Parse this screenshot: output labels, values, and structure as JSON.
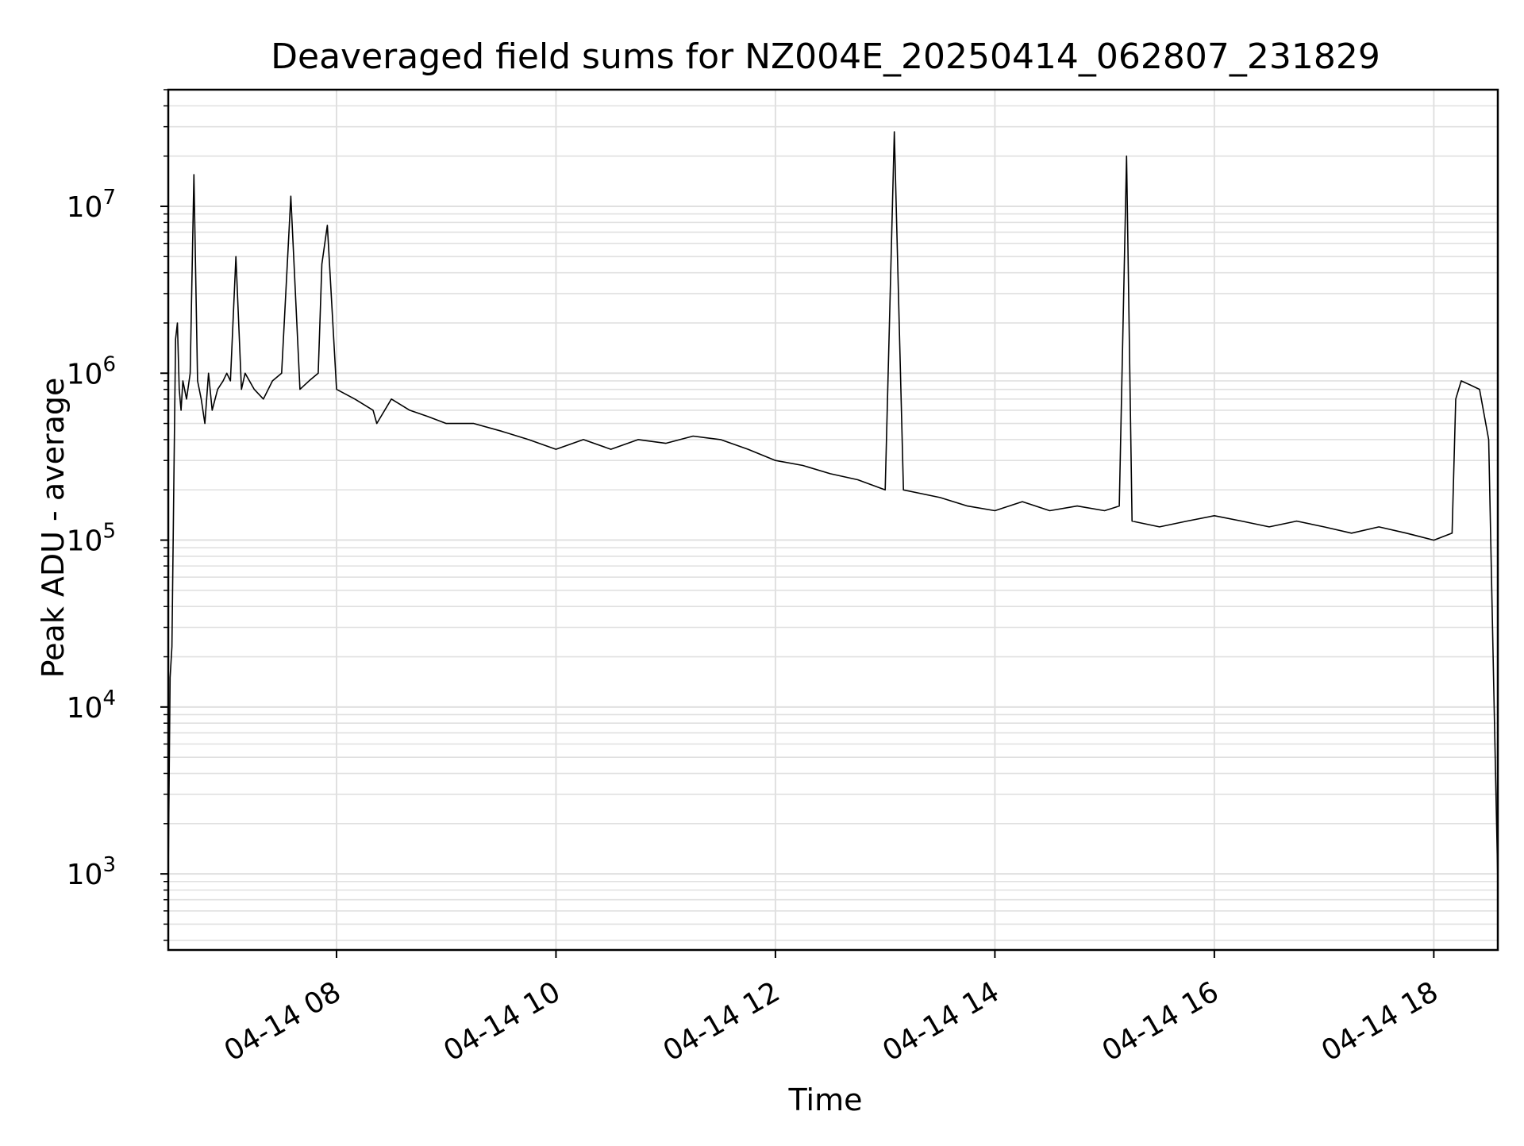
{
  "chart_data": {
    "type": "line",
    "title": "Deaveraged field sums for NZ004E_20250414_062807_231829",
    "xlabel": "Time",
    "ylabel": "Peak ADU - average",
    "y_scale": "log",
    "xlim": [
      "04-14 06:28",
      "04-14 18:35"
    ],
    "ylim": [
      350,
      50000000
    ],
    "grid": "major and minor",
    "line_color": "#000000",
    "grid_color": "#e0e0e0",
    "x_ticks": [
      {
        "value": "04-14 08:00",
        "label": "04-14 08"
      },
      {
        "value": "04-14 10:00",
        "label": "04-14 10"
      },
      {
        "value": "04-14 12:00",
        "label": "04-14 12"
      },
      {
        "value": "04-14 14:00",
        "label": "04-14 14"
      },
      {
        "value": "04-14 16:00",
        "label": "04-14 16"
      },
      {
        "value": "04-14 18:00",
        "label": "04-14 18"
      }
    ],
    "y_ticks": [
      {
        "value": 1000,
        "base": "10",
        "exp": "3"
      },
      {
        "value": 10000,
        "base": "10",
        "exp": "4"
      },
      {
        "value": 100000,
        "base": "10",
        "exp": "5"
      },
      {
        "value": 1000000,
        "base": "10",
        "exp": "6"
      },
      {
        "value": 10000000,
        "base": "10",
        "exp": "7"
      }
    ],
    "series": [
      {
        "x": [
          "04-14 06:28",
          "04-14 06:29",
          "04-14 06:30",
          "04-14 06:31",
          "04-14 06:32",
          "04-14 06:33",
          "04-14 06:34",
          "04-14 06:35",
          "04-14 06:36",
          "04-14 06:38",
          "04-14 06:40",
          "04-14 06:42",
          "04-14 06:44",
          "04-14 06:46",
          "04-14 06:48",
          "04-14 06:50",
          "04-14 06:52",
          "04-14 06:55",
          "04-14 06:58",
          "04-14 07:00",
          "04-14 07:02",
          "04-14 07:05",
          "04-14 07:08",
          "04-14 07:10",
          "04-14 07:15",
          "04-14 07:20",
          "04-14 07:25",
          "04-14 07:30",
          "04-14 07:35",
          "04-14 07:40",
          "04-14 07:45",
          "04-14 07:50",
          "04-14 07:52",
          "04-14 07:55",
          "04-14 08:00",
          "04-14 08:10",
          "04-14 08:20",
          "04-14 08:22",
          "04-14 08:30",
          "04-14 08:40",
          "04-14 08:50",
          "04-14 09:00",
          "04-14 09:15",
          "04-14 09:30",
          "04-14 09:45",
          "04-14 10:00",
          "04-14 10:15",
          "04-14 10:30",
          "04-14 10:45",
          "04-14 11:00",
          "04-14 11:15",
          "04-14 11:30",
          "04-14 11:45",
          "04-14 12:00",
          "04-14 12:15",
          "04-14 12:30",
          "04-14 12:45",
          "04-14 13:00",
          "04-14 13:05",
          "04-14 13:10",
          "04-14 13:30",
          "04-14 13:45",
          "04-14 14:00",
          "04-14 14:15",
          "04-14 14:30",
          "04-14 14:45",
          "04-14 15:00",
          "04-14 15:08",
          "04-14 15:12",
          "04-14 15:15",
          "04-14 15:30",
          "04-14 15:45",
          "04-14 16:00",
          "04-14 16:15",
          "04-14 16:30",
          "04-14 16:45",
          "04-14 17:00",
          "04-14 17:15",
          "04-14 17:30",
          "04-14 17:45",
          "04-14 18:00",
          "04-14 18:10",
          "04-14 18:12",
          "04-14 18:15",
          "04-14 18:20",
          "04-14 18:25",
          "04-14 18:30",
          "04-14 18:33",
          "04-14 18:35"
        ],
        "y": [
          1000,
          15000,
          23000,
          200000,
          1600000,
          2000000,
          800000,
          600000,
          900000,
          700000,
          1000000,
          15500000,
          900000,
          700000,
          500000,
          1000000,
          600000,
          800000,
          900000,
          1000000,
          900000,
          5000000,
          800000,
          1000000,
          800000,
          700000,
          900000,
          1000000,
          11500000,
          800000,
          900000,
          1000000,
          4500000,
          7700000,
          800000,
          700000,
          600000,
          500000,
          700000,
          600000,
          550000,
          500000,
          500000,
          450000,
          400000,
          350000,
          400000,
          350000,
          400000,
          380000,
          420000,
          400000,
          350000,
          300000,
          280000,
          250000,
          230000,
          200000,
          28000000,
          200000,
          180000,
          160000,
          150000,
          170000,
          150000,
          160000,
          150000,
          160000,
          20000000,
          130000,
          120000,
          130000,
          140000,
          130000,
          120000,
          130000,
          120000,
          110000,
          120000,
          110000,
          100000,
          110000,
          700000,
          900000,
          850000,
          800000,
          400000,
          10000,
          900
        ]
      }
    ]
  }
}
